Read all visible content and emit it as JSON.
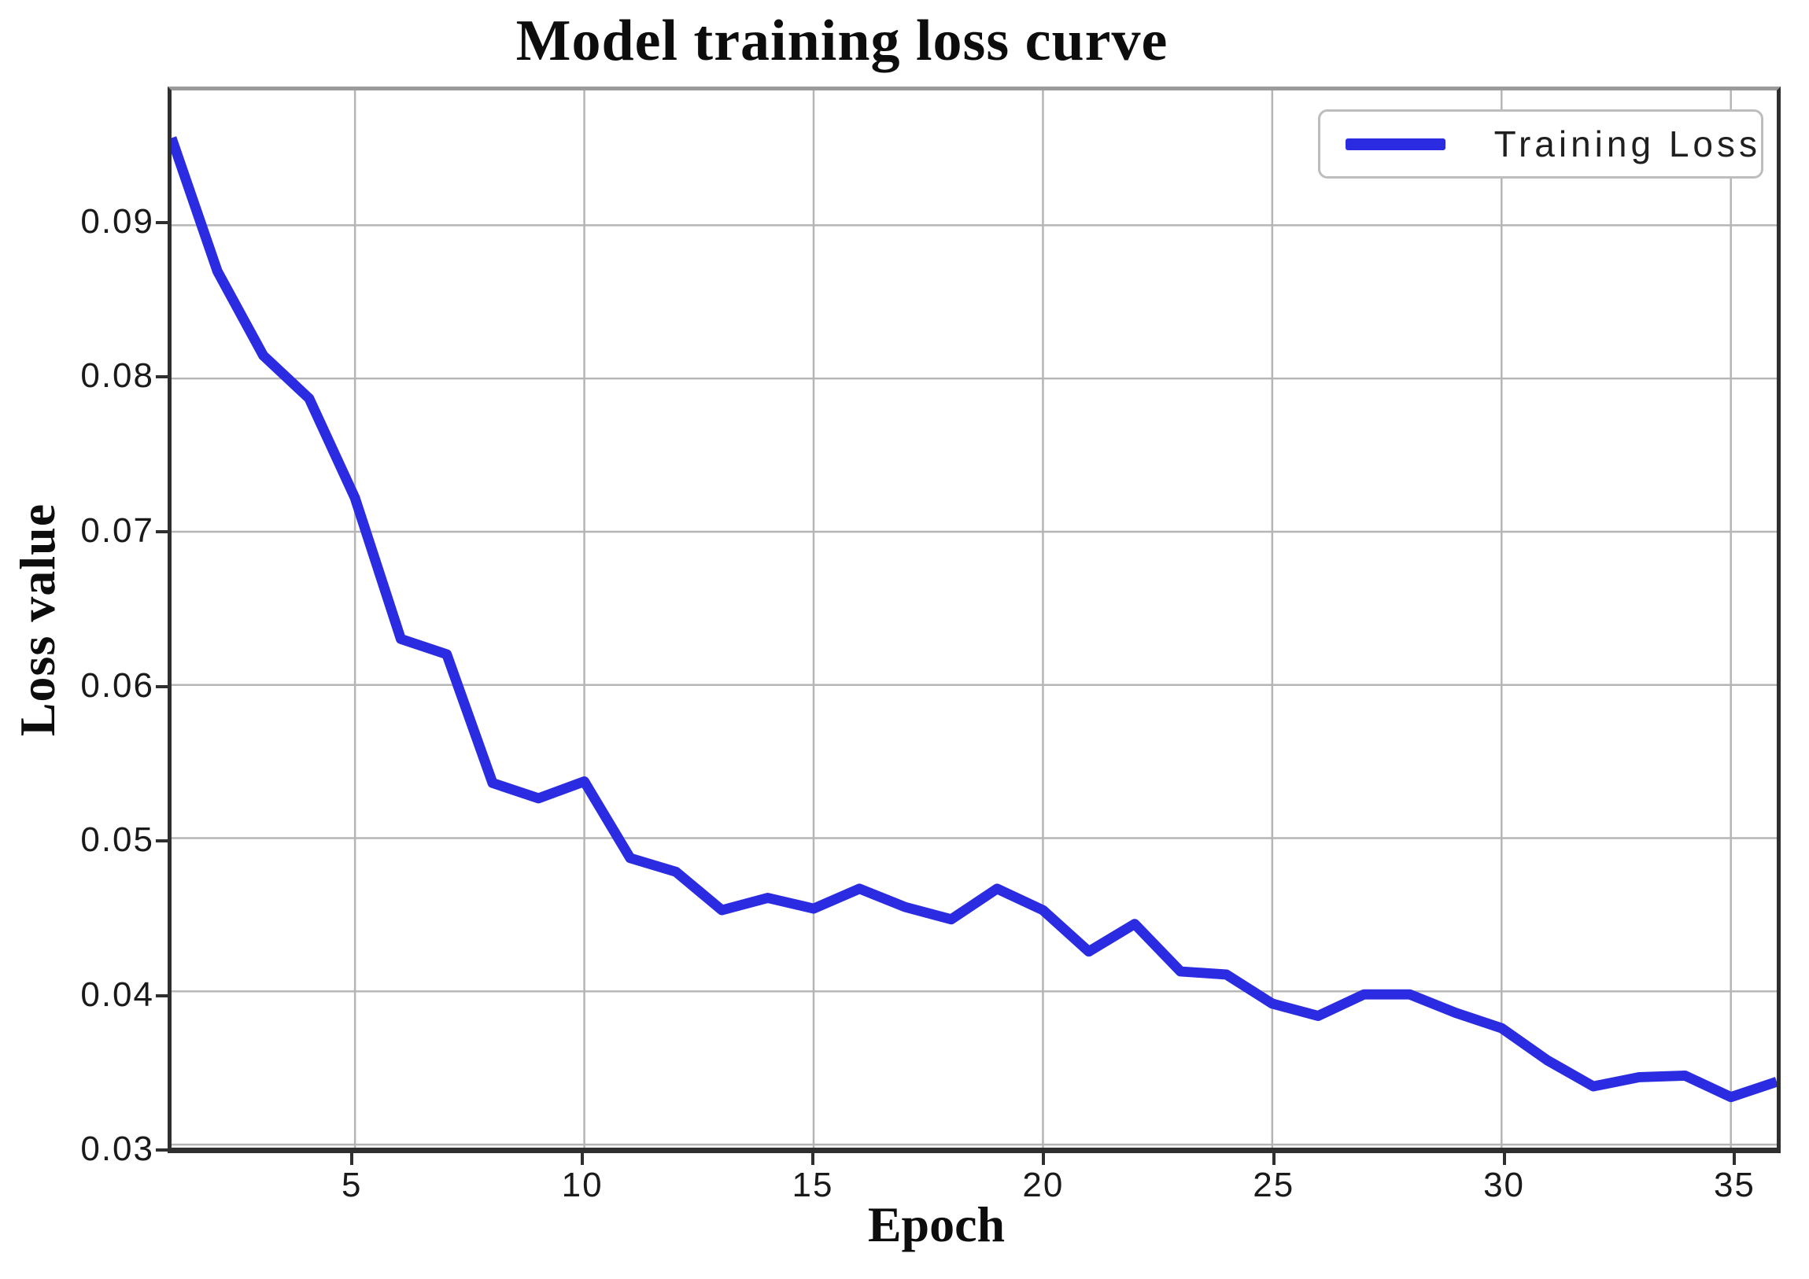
{
  "chart_data": {
    "type": "line",
    "title": "Model training loss curve",
    "xlabel": "Epoch",
    "ylabel": "Loss value",
    "grid": true,
    "legend_position": "upper right",
    "legend": [
      {
        "label": "Training Loss",
        "color": "#2b2be2"
      }
    ],
    "xlim": [
      1,
      36
    ],
    "ylim": [
      0.0298,
      0.0988
    ],
    "x_ticks": [
      5,
      10,
      15,
      20,
      25,
      30,
      35
    ],
    "x_tick_labels": [
      "5",
      "10",
      "15",
      "20",
      "25",
      "30",
      "35"
    ],
    "y_ticks": [
      0.03,
      0.04,
      0.05,
      0.06,
      0.07,
      0.08,
      0.09
    ],
    "y_tick_labels": [
      "0.03",
      "0.04",
      "0.05",
      "0.06",
      "0.07",
      "0.08",
      "0.09"
    ],
    "grid_color": "#b5b5b5",
    "series": [
      {
        "name": "Training Loss",
        "color": "#2b2be2",
        "line_width": 13,
        "x": [
          1,
          2,
          3,
          4,
          5,
          6,
          7,
          8,
          9,
          10,
          11,
          12,
          13,
          14,
          15,
          16,
          17,
          18,
          19,
          20,
          21,
          22,
          23,
          24,
          25,
          26,
          27,
          28,
          29,
          30,
          31,
          32,
          33,
          34,
          35,
          36
        ],
        "y": [
          0.0957,
          0.087,
          0.0815,
          0.0787,
          0.0722,
          0.063,
          0.062,
          0.0536,
          0.0526,
          0.0537,
          0.0487,
          0.0478,
          0.0453,
          0.0461,
          0.0454,
          0.0467,
          0.0455,
          0.0447,
          0.0467,
          0.0453,
          0.0426,
          0.0444,
          0.0413,
          0.0411,
          0.0392,
          0.0384,
          0.0398,
          0.0398,
          0.0386,
          0.0376,
          0.0355,
          0.0338,
          0.0344,
          0.0345,
          0.0331,
          0.0341
        ]
      }
    ]
  }
}
